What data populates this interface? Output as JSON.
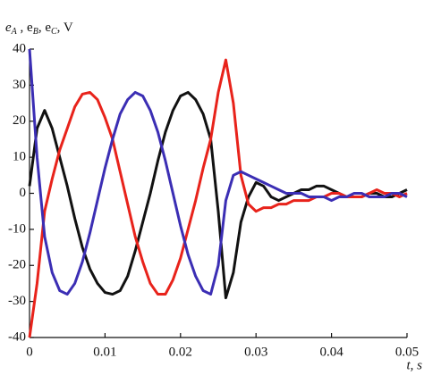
{
  "chart_data": {
    "type": "line",
    "ylabel": [
      "e",
      "A",
      " , e",
      "B",
      ", e",
      "C",
      ", V"
    ],
    "xlabel": "t, s",
    "x": [
      0,
      0.001,
      0.002,
      0.003,
      0.004,
      0.005,
      0.006,
      0.007,
      0.008,
      0.009,
      0.01,
      0.011,
      0.012,
      0.013,
      0.014,
      0.015,
      0.016,
      0.017,
      0.018,
      0.019,
      0.02,
      0.021,
      0.022,
      0.023,
      0.024,
      0.025,
      0.026,
      0.027,
      0.028,
      0.029,
      0.03,
      0.031,
      0.032,
      0.033,
      0.034,
      0.035,
      0.036,
      0.037,
      0.038,
      0.039,
      0.04,
      0.041,
      0.042,
      0.043,
      0.044,
      0.045,
      0.046,
      0.047,
      0.048,
      0.049,
      0.05
    ],
    "series": [
      {
        "color": "#111111",
        "values": [
          2,
          18,
          23,
          18,
          10,
          2,
          -7,
          -15,
          -21,
          -25,
          -27.5,
          -28,
          -27,
          -23,
          -16,
          -8,
          0,
          9,
          17,
          23,
          27,
          28,
          26,
          22,
          15,
          -5,
          -29,
          -22,
          -8,
          -1,
          3,
          2,
          -1,
          -2,
          -1,
          0,
          1,
          1,
          2,
          2,
          1,
          0,
          -1,
          -1,
          -1,
          0,
          0,
          -1,
          -1,
          0,
          1
        ]
      },
      {
        "color": "#e8231b",
        "values": [
          -40,
          -25,
          -5,
          4,
          12,
          18,
          24,
          27.5,
          28,
          26,
          21,
          15,
          6,
          -3,
          -12,
          -19,
          -25,
          -28,
          -28,
          -24,
          -18,
          -10,
          -2,
          7,
          15,
          28,
          37,
          25,
          5,
          -3,
          -5,
          -4,
          -4,
          -3,
          -3,
          -2,
          -2,
          -2,
          -1,
          -1,
          0,
          0,
          -1,
          -1,
          -1,
          0,
          1,
          0,
          0,
          -1,
          0
        ]
      },
      {
        "color": "#3b2eb4",
        "values": [
          40,
          10,
          -12,
          -22,
          -27,
          -28,
          -25,
          -19,
          -11,
          -2,
          7,
          15,
          22,
          26,
          28,
          27,
          23,
          17,
          9,
          0,
          -9,
          -17,
          -23,
          -27,
          -28,
          -20,
          -2,
          5,
          6,
          5,
          4,
          3,
          2,
          1,
          0,
          0,
          0,
          -1,
          -1,
          -1,
          -2,
          -1,
          -1,
          0,
          0,
          -1,
          -1,
          -1,
          0,
          0,
          -1
        ]
      }
    ],
    "xlim": [
      0,
      0.05
    ],
    "ylim": [
      -40,
      40
    ],
    "xticks": [
      0,
      0.01,
      0.02,
      0.03,
      0.04,
      0.05
    ],
    "yticks": [
      -40,
      -30,
      -20,
      -10,
      0,
      10,
      20,
      30,
      40
    ]
  }
}
